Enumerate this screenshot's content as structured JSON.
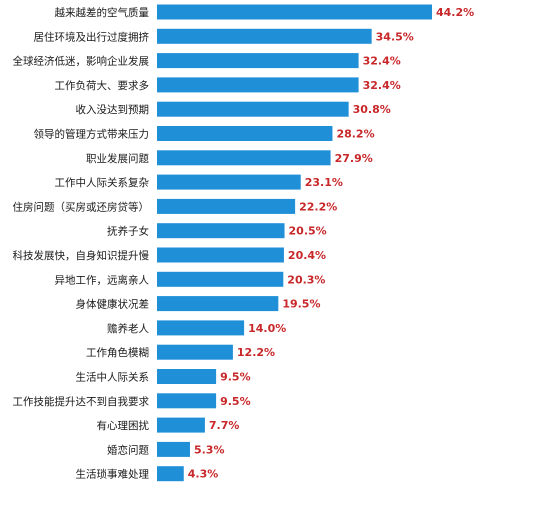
{
  "chart_data": {
    "type": "bar",
    "orientation": "horizontal",
    "title": "",
    "xlabel": "",
    "ylabel": "",
    "grid": false,
    "legend": "none",
    "categories": [
      "越来越差的空气质量",
      "居住环境及出行过度拥挤",
      "全球经济低迷，影响企业发展",
      "工作负荷大、要求多",
      "收入没达到预期",
      "领导的管理方式带来压力",
      "职业发展问题",
      "工作中人际关系复杂",
      "住房问题（买房或还房贷等）",
      "抚养子女",
      "科技发展快，自身知识提升慢",
      "异地工作，远离亲人",
      "身体健康状况差",
      "赡养老人",
      "工作角色模糊",
      "生活中人际关系",
      "工作技能提升达不到自我要求",
      "有心理困扰",
      "婚恋问题",
      "生活琐事难处理"
    ],
    "values": [
      44.2,
      34.5,
      32.4,
      32.4,
      30.8,
      28.2,
      27.9,
      23.1,
      22.2,
      20.5,
      20.4,
      20.3,
      19.5,
      14.0,
      12.2,
      9.5,
      9.5,
      7.7,
      5.3,
      4.3
    ],
    "value_labels": [
      "44.2%",
      "34.5%",
      "32.4%",
      "32.4%",
      "30.8%",
      "28.2%",
      "27.9%",
      "23.1%",
      "22.2%",
      "20.5%",
      "20.4%",
      "20.3%",
      "19.5%",
      "14.0%",
      "12.2%",
      "9.5%",
      "9.5%",
      "7.7%",
      "5.3%",
      "4.3%"
    ],
    "xlim": [
      0,
      44.2
    ],
    "colors": {
      "bar": "#1f8fd8",
      "value_text": "#c8282a",
      "category_text": "#1a1a1a"
    }
  }
}
